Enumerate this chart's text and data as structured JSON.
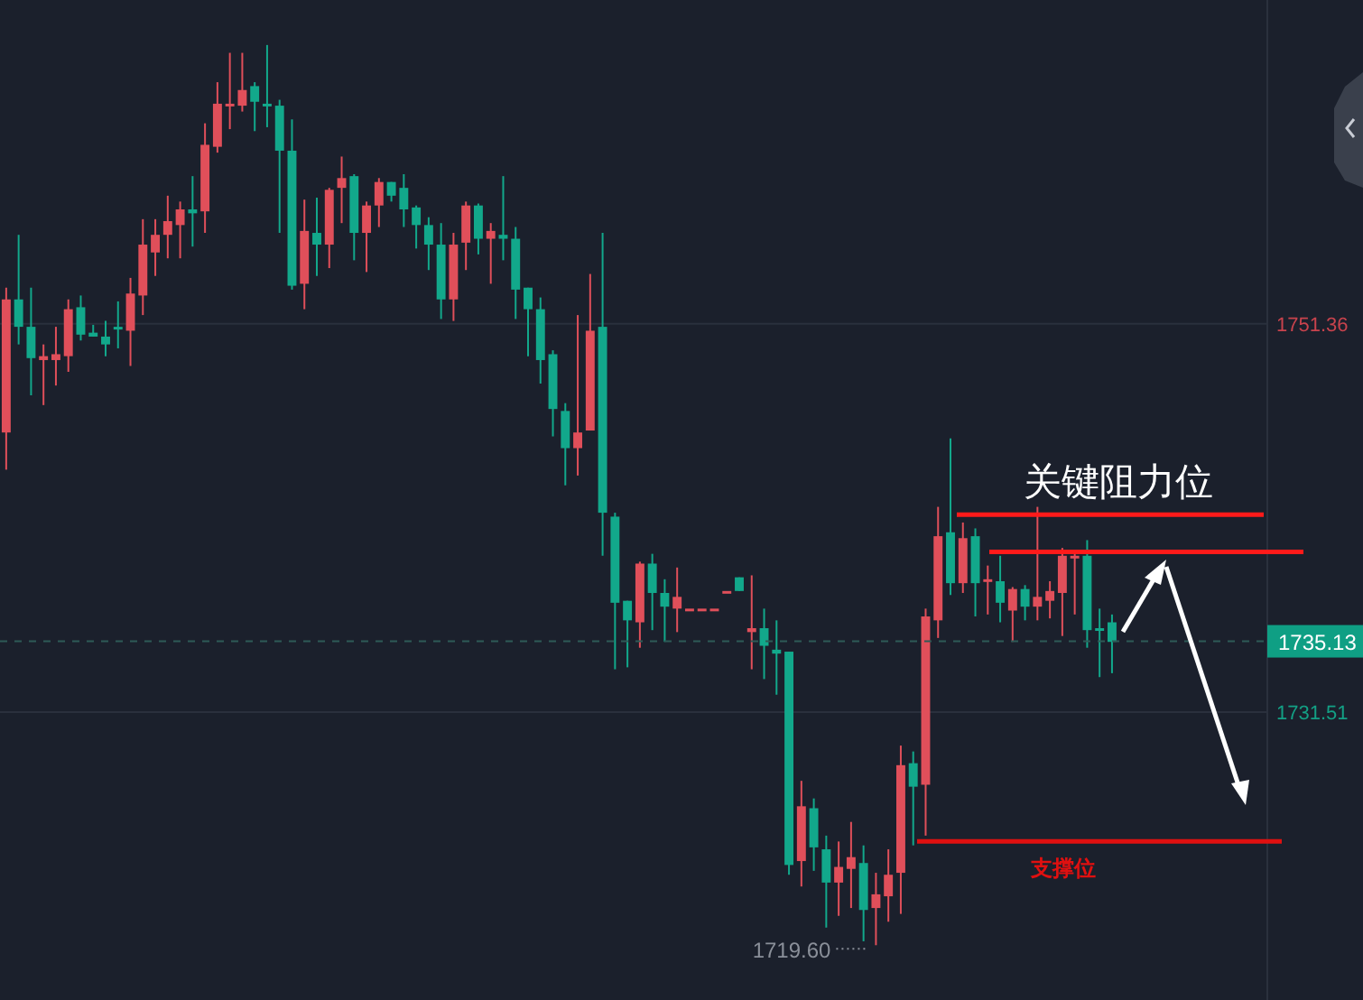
{
  "chart_data": {
    "type": "candlestick",
    "categories": [
      null,
      null,
      null,
      null,
      null,
      null,
      null,
      null,
      null,
      null,
      null,
      null,
      null,
      null,
      null,
      null,
      null,
      null,
      null,
      null,
      null,
      null,
      null,
      null,
      null,
      null,
      null,
      null,
      null,
      null,
      null,
      null,
      null,
      null,
      null,
      null,
      null,
      null,
      null,
      null,
      null,
      null,
      null,
      null,
      null,
      null,
      null,
      null,
      null,
      null,
      null,
      null,
      null,
      null,
      null,
      null,
      null,
      null,
      null,
      null,
      null,
      null,
      null,
      null,
      null,
      null,
      null,
      null,
      null,
      null,
      null,
      null,
      null,
      null,
      null,
      null,
      null,
      null,
      null,
      null,
      null,
      null,
      null,
      null,
      null,
      null,
      null,
      null,
      null,
      null,
      null,
      null,
      null,
      null,
      null,
      null,
      null,
      null,
      null,
      null,
      null,
      null
    ],
    "ohlc": [
      [
        1745.8,
        1753.2,
        1743.9,
        1752.6
      ],
      [
        1752.6,
        1755.9,
        1750.3,
        1751.2
      ],
      [
        1751.2,
        1753.2,
        1747.7,
        1749.6
      ],
      [
        1749.5,
        1750.3,
        1747.2,
        1749.7
      ],
      [
        1749.5,
        1751.2,
        1748.2,
        1749.8
      ],
      [
        1749.7,
        1752.6,
        1748.9,
        1752.1
      ],
      [
        1752.2,
        1752.8,
        1750.5,
        1750.8
      ],
      [
        1750.9,
        1751.3,
        1750.7,
        1750.7
      ],
      [
        1750.7,
        1751.5,
        1749.7,
        1750.3
      ],
      [
        1751.2,
        1752.5,
        1750.1,
        1751.1
      ],
      [
        1751.0,
        1753.7,
        1749.2,
        1752.9
      ],
      [
        1752.8,
        1756.7,
        1751.8,
        1755.4
      ],
      [
        1755.0,
        1756.7,
        1753.8,
        1755.9
      ],
      [
        1755.9,
        1757.9,
        1754.7,
        1756.6
      ],
      [
        1756.4,
        1757.6,
        1754.7,
        1757.2
      ],
      [
        1757.2,
        1758.9,
        1755.3,
        1757.0
      ],
      [
        1757.1,
        1761.6,
        1756.0,
        1760.5
      ],
      [
        1760.4,
        1763.7,
        1760.1,
        1762.6
      ],
      [
        1762.5,
        1765.2,
        1761.3,
        1762.6
      ],
      [
        1762.5,
        1765.2,
        1762.2,
        1763.3
      ],
      [
        1763.5,
        1763.7,
        1761.2,
        1762.7
      ],
      [
        1762.6,
        1765.6,
        1761.4,
        1762.5
      ],
      [
        1762.5,
        1762.8,
        1756.0,
        1760.2
      ],
      [
        1760.2,
        1761.8,
        1753.1,
        1753.3
      ],
      [
        1753.4,
        1757.7,
        1752.1,
        1756.1
      ],
      [
        1756.0,
        1757.8,
        1753.8,
        1755.4
      ],
      [
        1755.4,
        1758.3,
        1754.2,
        1758.2
      ],
      [
        1758.3,
        1759.9,
        1756.5,
        1758.8
      ],
      [
        1758.9,
        1759.0,
        1754.6,
        1756.0
      ],
      [
        1756.0,
        1757.6,
        1754.0,
        1757.4
      ],
      [
        1757.4,
        1758.8,
        1756.3,
        1758.6
      ],
      [
        1758.6,
        1758.6,
        1757.6,
        1757.9
      ],
      [
        1758.3,
        1759.0,
        1756.3,
        1757.2
      ],
      [
        1757.3,
        1757.4,
        1755.2,
        1756.4
      ],
      [
        1756.4,
        1756.8,
        1754.1,
        1755.4
      ],
      [
        1755.4,
        1756.5,
        1751.6,
        1752.6
      ],
      [
        1752.6,
        1756.0,
        1751.5,
        1755.4
      ],
      [
        1755.5,
        1757.6,
        1754.1,
        1757.4
      ],
      [
        1757.4,
        1757.5,
        1754.9,
        1755.7
      ],
      [
        1755.7,
        1756.5,
        1753.4,
        1756.1
      ],
      [
        1755.9,
        1758.9,
        1754.6,
        1755.7
      ],
      [
        1755.7,
        1756.3,
        1751.6,
        1753.1
      ],
      [
        1753.2,
        1753.2,
        1749.7,
        1752.1
      ],
      [
        1752.1,
        1752.7,
        1748.3,
        1749.5
      ],
      [
        1749.8,
        1750.0,
        1745.6,
        1747.0
      ],
      [
        1746.9,
        1747.3,
        1743.1,
        1745.0
      ],
      [
        1745.0,
        1751.8,
        1743.6,
        1745.8
      ],
      [
        1745.9,
        1753.9,
        1745.9,
        1751.0
      ],
      [
        1751.2,
        1756.0,
        1739.5,
        1741.7
      ],
      [
        1741.5,
        1741.7,
        1733.7,
        1737.1
      ],
      [
        1737.2,
        1737.2,
        1733.8,
        1736.2
      ],
      [
        1736.1,
        1739.2,
        1734.8,
        1739.1
      ],
      [
        1739.1,
        1739.6,
        1735.7,
        1737.6
      ],
      [
        1737.6,
        1738.3,
        1735.1,
        1736.9
      ],
      [
        1736.8,
        1738.9,
        1735.6,
        1737.4
      ],
      [
        1736.8,
        1736.8,
        1736.8,
        1736.8
      ],
      [
        1736.8,
        1736.8,
        1736.8,
        1736.8
      ],
      [
        1736.8,
        1736.8,
        1736.8,
        1736.8
      ],
      [
        1737.7,
        1737.7,
        1737.7,
        1737.7
      ],
      [
        1738.4,
        1738.4,
        1737.7,
        1737.7
      ],
      [
        1735.6,
        1738.5,
        1733.7,
        1735.8
      ],
      [
        1735.8,
        1736.8,
        1733.2,
        1734.9
      ],
      [
        1734.7,
        1736.2,
        1732.4,
        1734.5
      ],
      [
        1734.6,
        1734.6,
        1723.2,
        1723.7
      ],
      [
        1723.9,
        1728.0,
        1722.6,
        1726.7
      ],
      [
        1726.6,
        1727.1,
        1723.4,
        1724.6
      ],
      [
        1724.5,
        1725.2,
        1720.5,
        1722.8
      ],
      [
        1722.8,
        1724.9,
        1721.1,
        1723.6
      ],
      [
        1723.5,
        1725.9,
        1721.5,
        1724.1
      ],
      [
        1723.8,
        1724.7,
        1719.8,
        1721.4
      ],
      [
        1721.5,
        1723.3,
        1719.6,
        1722.2
      ],
      [
        1722.1,
        1724.5,
        1720.8,
        1723.2
      ],
      [
        1723.3,
        1729.8,
        1721.2,
        1728.8
      ],
      [
        1728.9,
        1729.5,
        1724.7,
        1727.7
      ],
      [
        1727.8,
        1736.8,
        1725.2,
        1736.4
      ],
      [
        1736.2,
        1742.0,
        1735.3,
        1740.5
      ],
      [
        1740.7,
        1745.5,
        1737.5,
        1738.1
      ],
      [
        1738.1,
        1741.2,
        1737.6,
        1740.4
      ],
      [
        1740.5,
        1740.9,
        1736.4,
        1738.1
      ],
      [
        1738.3,
        1739.0,
        1736.5,
        1738.3
      ],
      [
        1738.2,
        1739.5,
        1736.1,
        1737.1
      ],
      [
        1736.7,
        1737.9,
        1735.1,
        1737.8
      ],
      [
        1737.8,
        1738.0,
        1736.2,
        1736.9
      ],
      [
        1736.9,
        1742.0,
        1736.2,
        1737.4
      ],
      [
        1737.2,
        1738.2,
        1736.3,
        1737.7
      ],
      [
        1737.6,
        1739.9,
        1735.4,
        1739.5
      ],
      [
        1739.4,
        1739.7,
        1736.5,
        1739.5
      ],
      [
        1739.5,
        1740.3,
        1734.8,
        1735.7
      ],
      [
        1735.8,
        1736.8,
        1733.3,
        1735.7
      ],
      [
        1736.1,
        1736.5,
        1733.5,
        1735.1
      ],
      null,
      null,
      null,
      null,
      null,
      null,
      null,
      null,
      null,
      null,
      null,
      null
    ],
    "ylim": [
      1716.8,
      1767.9
    ],
    "yticks": [
      1751.36,
      1731.51
    ],
    "tick_labels": "y",
    "grid": "y",
    "ref_lines": [
      {
        "axis": "y",
        "value": 1735.13,
        "label": "1735.13",
        "color": "#2e5a57",
        "line_style": "dashed"
      },
      {
        "axis": "y",
        "value": 1741.6,
        "label": "关键阻力位",
        "color": "#ff1a1a",
        "line_style": "solid"
      },
      {
        "axis": "y",
        "value": 1739.7,
        "label": null,
        "color": "#ff1a1a",
        "line_style": "solid"
      },
      {
        "axis": "y",
        "value": 1724.9,
        "label": "支撑位",
        "color": "#e01010",
        "line_style": "solid"
      }
    ],
    "annotations": [
      "1719.60"
    ]
  }
}
